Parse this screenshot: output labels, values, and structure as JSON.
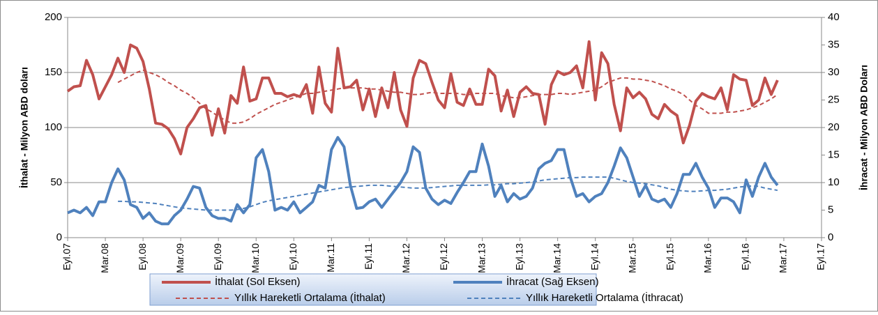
{
  "chart_data": {
    "type": "line",
    "y_label": "İthalat - Milyon  ABD doları",
    "y2_label": "İhracat - Milyon ABD  Doları",
    "categories": [
      "Eyl.07",
      null,
      null,
      null,
      null,
      null,
      "Mar.08",
      null,
      null,
      null,
      null,
      null,
      "Eyl.08",
      null,
      null,
      null,
      null,
      null,
      "Mar.09",
      null,
      null,
      null,
      null,
      null,
      "Eyl.09",
      null,
      null,
      null,
      null,
      null,
      "Mar.10",
      null,
      null,
      null,
      null,
      null,
      "Eyl.10",
      null,
      null,
      null,
      null,
      null,
      "Mar.11",
      null,
      null,
      null,
      null,
      null,
      "Eyl.11",
      null,
      null,
      null,
      null,
      null,
      "Mar.12",
      null,
      null,
      null,
      null,
      null,
      "Eyl.12",
      null,
      null,
      null,
      null,
      null,
      "Mar.13",
      null,
      null,
      null,
      null,
      null,
      "Eyl.13",
      null,
      null,
      null,
      null,
      null,
      "Mar.14",
      null,
      null,
      null,
      null,
      null,
      "Eyl.14",
      null,
      null,
      null,
      null,
      null,
      "Mar.15",
      null,
      null,
      null,
      null,
      null,
      "Eyl.15",
      null,
      null,
      null,
      null,
      null,
      "Mar.16",
      null,
      null,
      null,
      null,
      null,
      "Eyl.16",
      null,
      null,
      null,
      null,
      null,
      "Mar.17",
      null,
      null,
      null,
      null,
      null,
      "Eyl.17"
    ],
    "ylim": [
      0,
      200
    ],
    "yticks": [
      0,
      50,
      100,
      150,
      200
    ],
    "y2lim": [
      0,
      40
    ],
    "y2ticks": [
      0,
      5,
      10,
      15,
      20,
      25,
      30,
      35,
      40
    ],
    "grid": true,
    "series": [
      {
        "name": "İthalat (Sol Eksen)",
        "color": "#c0504d",
        "dashed": false,
        "values": [
          133,
          137,
          138,
          161,
          148,
          126,
          137,
          148,
          163,
          150,
          175,
          172,
          160,
          135,
          104,
          103,
          99,
          90,
          76,
          100,
          108,
          118,
          120,
          93,
          117,
          95,
          129,
          122,
          155,
          124,
          126,
          145,
          145,
          131,
          131,
          128,
          130,
          128,
          139,
          113,
          155,
          122,
          114,
          172,
          136,
          137,
          143,
          116,
          135,
          110,
          136,
          118,
          150,
          116,
          101,
          145,
          161,
          158,
          141,
          125,
          118,
          149,
          123,
          120,
          135,
          121,
          121,
          153,
          147,
          115,
          134,
          110,
          132,
          137,
          131,
          130,
          103,
          139,
          151,
          148,
          150,
          156,
          136,
          178,
          125,
          168,
          158,
          121,
          97,
          136,
          127,
          132,
          126,
          112,
          108,
          121,
          115,
          111,
          86,
          102,
          124,
          131,
          128,
          126,
          136,
          116,
          148,
          144,
          143,
          120,
          125,
          145,
          130,
          143,
          null,
          null,
          null,
          null,
          null,
          null,
          null
        ]
      },
      {
        "name": "İhracat (Sağ Eksen)",
        "color": "#4f81bd",
        "dashed": false,
        "axis": "y2",
        "values": [
          4.5,
          5,
          4.5,
          5.5,
          4,
          6.5,
          6.5,
          10,
          12.5,
          10.5,
          6,
          5.5,
          3.5,
          4.5,
          3,
          2.5,
          2.5,
          4,
          5,
          7,
          9.3,
          9,
          5.5,
          4,
          3.5,
          3.5,
          3,
          6,
          4.5,
          6,
          14.5,
          16,
          12,
          5,
          5.5,
          5,
          6.5,
          4.5,
          5.5,
          6.5,
          9.5,
          9,
          16,
          18.2,
          16.5,
          9.5,
          5.3,
          5.5,
          6.5,
          7,
          5.5,
          7,
          8.5,
          10,
          12,
          16.5,
          15.5,
          9,
          7,
          6,
          6.8,
          6.2,
          8.2,
          10,
          12,
          12,
          17,
          13,
          7.5,
          9.5,
          6.5,
          8,
          7,
          7.5,
          9,
          12.5,
          13.5,
          14,
          16,
          16,
          11,
          7.5,
          8,
          6.5,
          7.5,
          8,
          10,
          13,
          16.3,
          14.5,
          11,
          7.5,
          9.5,
          7,
          6.5,
          7,
          5.5,
          8,
          11.5,
          11.5,
          13.5,
          11,
          9,
          5.5,
          7.2,
          7.2,
          6.5,
          4.5,
          10.5,
          7.5,
          11,
          13.5,
          11,
          9.5,
          null,
          null,
          null,
          null,
          null,
          null,
          null
        ]
      },
      {
        "name": "Yıllık Hareketli Ortalama (İthalat)",
        "color": "#c0504d",
        "dashed": true,
        "values": [
          null,
          null,
          null,
          null,
          null,
          null,
          null,
          null,
          141,
          144,
          147,
          150,
          152,
          150,
          148,
          145,
          141,
          138,
          134,
          131,
          127,
          122,
          117,
          114,
          110,
          107,
          104,
          104,
          105,
          108,
          112,
          115,
          118,
          121,
          123,
          125,
          127,
          129,
          131,
          131,
          132,
          133,
          134,
          135,
          136,
          136,
          136,
          136,
          135,
          135,
          134,
          133,
          132,
          132,
          131,
          130,
          130,
          131,
          132,
          131,
          131,
          131,
          131,
          130,
          130,
          131,
          131,
          131,
          131,
          129,
          128,
          127,
          127,
          128,
          129,
          130,
          130,
          130,
          131,
          131,
          130,
          131,
          132,
          133,
          134,
          137,
          141,
          143,
          145,
          145,
          144,
          144,
          143,
          142,
          140,
          138,
          135,
          133,
          130,
          125,
          120,
          117,
          113,
          113,
          113,
          114,
          114,
          115,
          116,
          118,
          120,
          123,
          126,
          130,
          null,
          null,
          null,
          null,
          null,
          null,
          null
        ]
      },
      {
        "name": "Yıllık Hareketli Ortalama (İthracat)",
        "color": "#4f81bd",
        "dashed": true,
        "axis": "y2",
        "values": [
          null,
          null,
          null,
          null,
          null,
          null,
          null,
          null,
          6.6,
          6.6,
          6.5,
          6.5,
          6.4,
          6.3,
          6.2,
          6.0,
          5.8,
          5.6,
          5.4,
          5.3,
          5.2,
          5.1,
          5.0,
          5.0,
          5.0,
          5.0,
          5.0,
          5.1,
          5.3,
          5.6,
          6.0,
          6.4,
          6.7,
          6.9,
          7.1,
          7.3,
          7.5,
          7.7,
          7.9,
          8.1,
          8.3,
          8.5,
          8.7,
          8.9,
          9.1,
          9.2,
          9.3,
          9.4,
          9.5,
          9.5,
          9.5,
          9.4,
          9.3,
          9.2,
          9.1,
          9.0,
          9.0,
          9.0,
          9.1,
          9.2,
          9.3,
          9.4,
          9.5,
          9.5,
          9.5,
          9.5,
          9.5,
          9.6,
          9.6,
          9.7,
          9.8,
          9.8,
          9.9,
          10.0,
          10.1,
          10.3,
          10.5,
          10.6,
          10.7,
          10.8,
          10.9,
          10.9,
          11.0,
          11.0,
          11.0,
          11.0,
          11.0,
          10.8,
          10.5,
          10.2,
          10.0,
          9.9,
          9.8,
          9.6,
          9.4,
          9.1,
          8.8,
          8.6,
          8.5,
          8.4,
          8.4,
          8.5,
          8.6,
          8.6,
          8.7,
          8.8,
          9.0,
          9.2,
          9.3,
          9.4,
          9.3,
          9.0,
          8.8,
          8.6,
          null,
          null,
          null,
          null,
          null,
          null,
          null
        ]
      }
    ]
  }
}
